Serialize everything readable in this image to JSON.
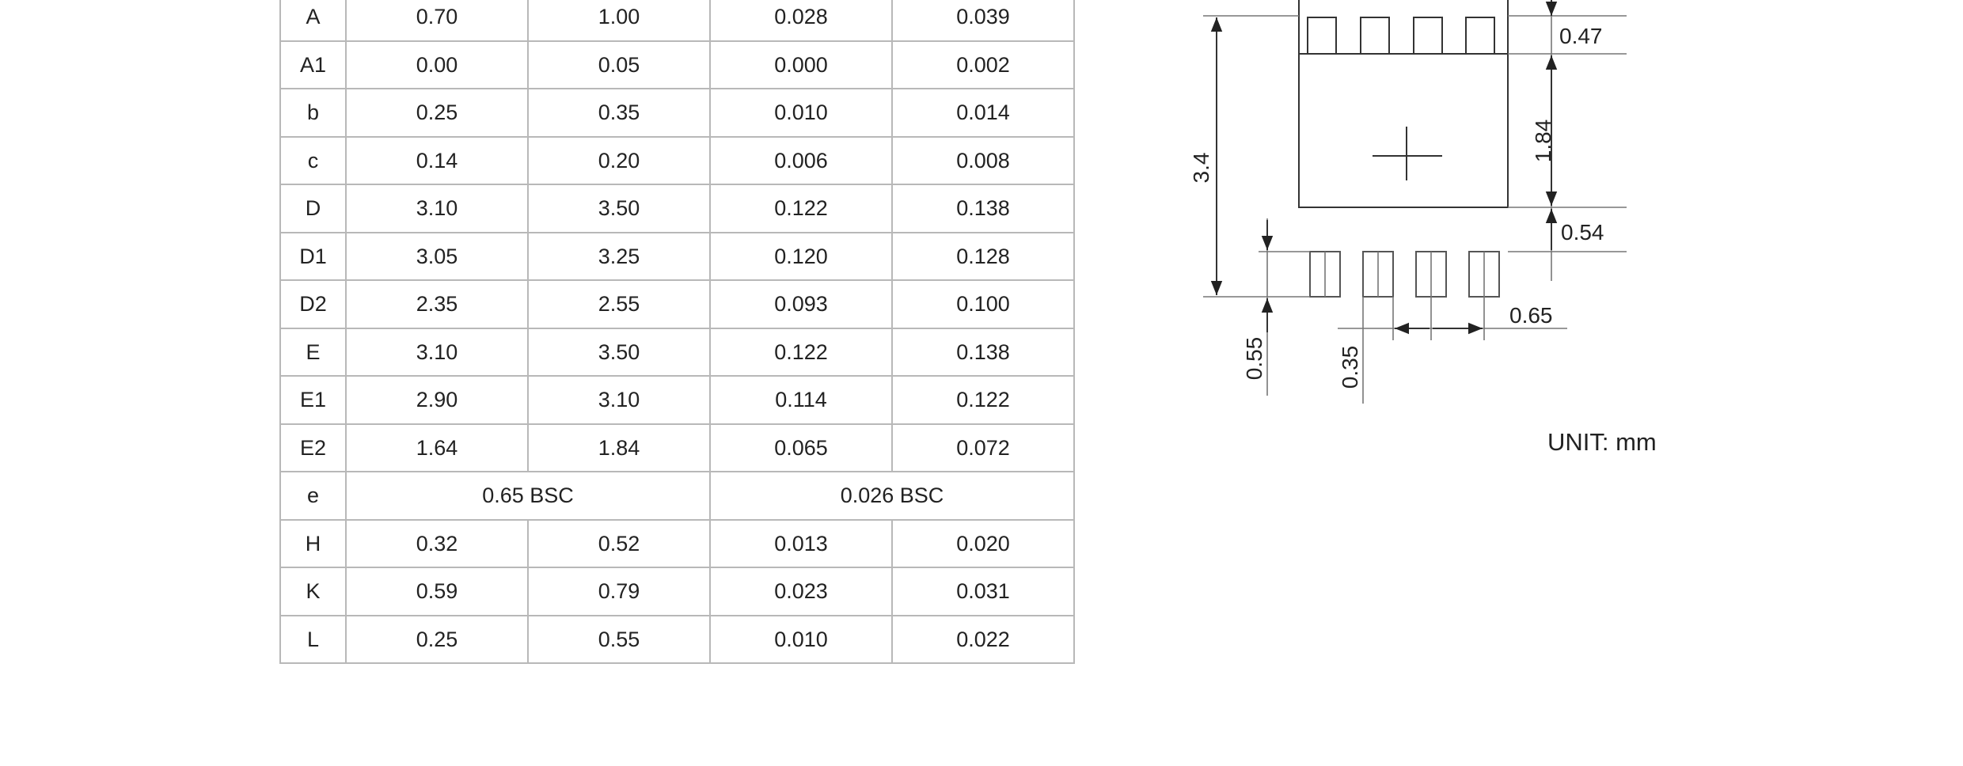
{
  "dimension_table": {
    "rows": [
      {
        "symbol": "A",
        "mm_min": "0.70",
        "mm_max": "1.00",
        "in_min": "0.028",
        "in_max": "0.039"
      },
      {
        "symbol": "A1",
        "mm_min": "0.00",
        "mm_max": "0.05",
        "in_min": "0.000",
        "in_max": "0.002"
      },
      {
        "symbol": "b",
        "mm_min": "0.25",
        "mm_max": "0.35",
        "in_min": "0.010",
        "in_max": "0.014"
      },
      {
        "symbol": "c",
        "mm_min": "0.14",
        "mm_max": "0.20",
        "in_min": "0.006",
        "in_max": "0.008"
      },
      {
        "symbol": "D",
        "mm_min": "3.10",
        "mm_max": "3.50",
        "in_min": "0.122",
        "in_max": "0.138"
      },
      {
        "symbol": "D1",
        "mm_min": "3.05",
        "mm_max": "3.25",
        "in_min": "0.120",
        "in_max": "0.128"
      },
      {
        "symbol": "D2",
        "mm_min": "2.35",
        "mm_max": "2.55",
        "in_min": "0.093",
        "in_max": "0.100"
      },
      {
        "symbol": "E",
        "mm_min": "3.10",
        "mm_max": "3.50",
        "in_min": "0.122",
        "in_max": "0.138"
      },
      {
        "symbol": "E1",
        "mm_min": "2.90",
        "mm_max": "3.10",
        "in_min": "0.114",
        "in_max": "0.122"
      },
      {
        "symbol": "E2",
        "mm_min": "1.64",
        "mm_max": "1.84",
        "in_min": "0.065",
        "in_max": "0.072"
      },
      {
        "symbol": "e",
        "mm_span": "0.65 BSC",
        "in_span": "0.026 BSC"
      },
      {
        "symbol": "H",
        "mm_min": "0.32",
        "mm_max": "0.52",
        "in_min": "0.013",
        "in_max": "0.020"
      },
      {
        "symbol": "K",
        "mm_min": "0.59",
        "mm_max": "0.79",
        "in_min": "0.023",
        "in_max": "0.031"
      },
      {
        "symbol": "L",
        "mm_min": "0.25",
        "mm_max": "0.55",
        "in_min": "0.010",
        "in_max": "0.022"
      }
    ]
  },
  "land_pattern": {
    "dim_top_pad": "0.47",
    "dim_pad_height": "1.84",
    "dim_gap": "0.54",
    "dim_total_height": "3.4",
    "dim_pitch": "0.65",
    "dim_lead_length": "0.55",
    "dim_lead_width": "0.35",
    "unit": "UNIT: mm"
  }
}
